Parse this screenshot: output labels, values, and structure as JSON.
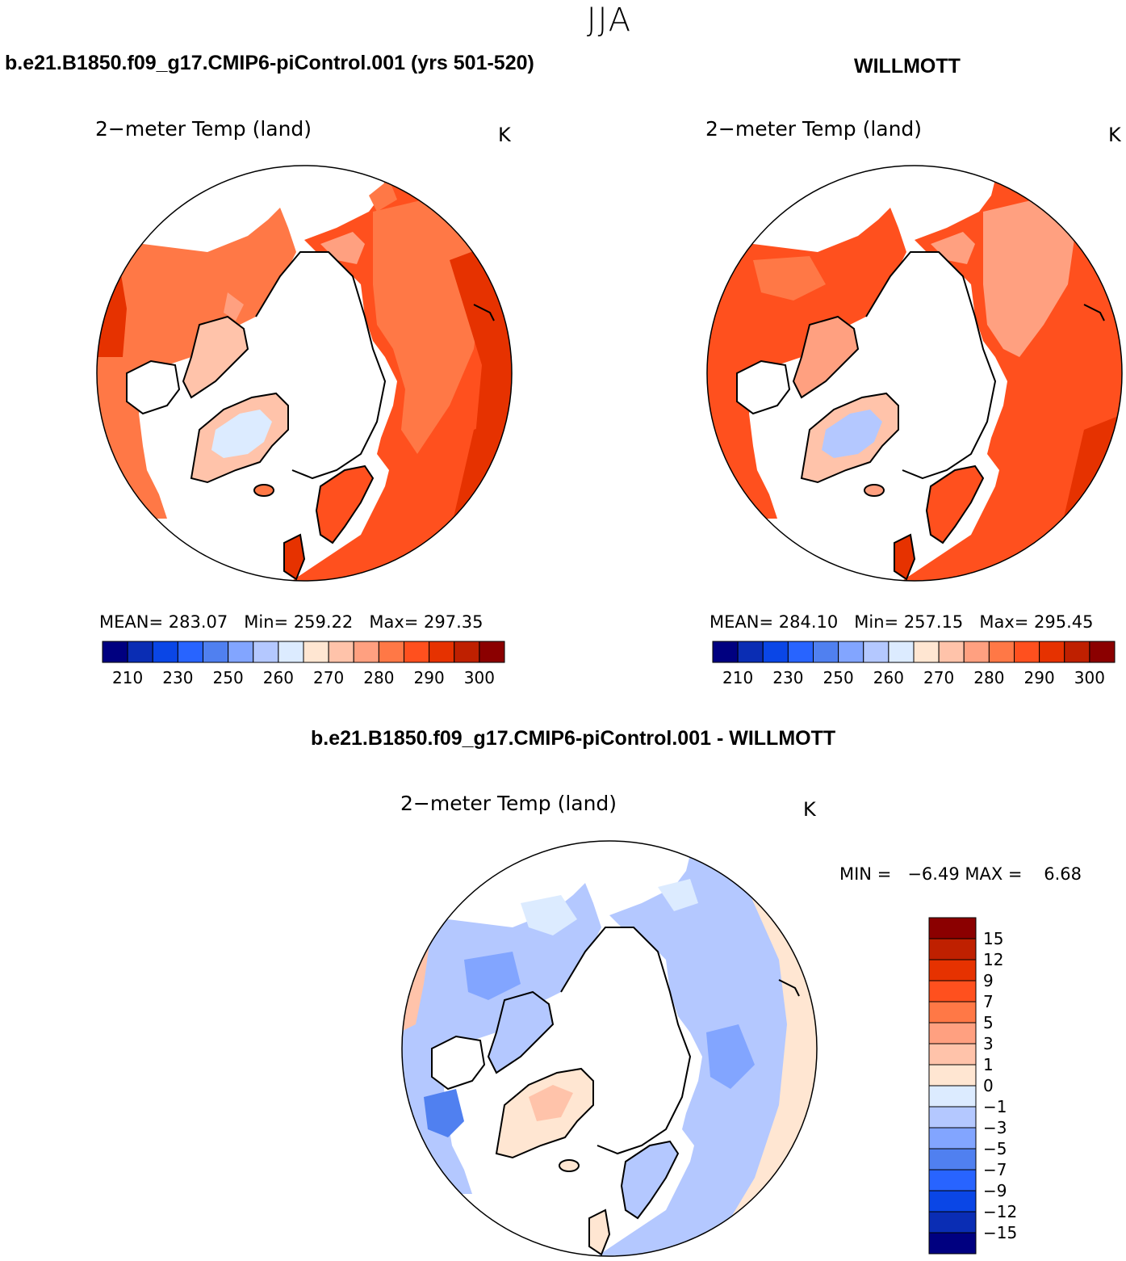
{
  "season": "JJA",
  "panels": [
    {
      "id": "model",
      "header": "b.e21.B1850.f09_g17.CMIP6-piControl.001 (yrs 501-520)",
      "title": "2−meter Temp (land)",
      "unit": "K",
      "stats": {
        "mean_label": "MEAN=",
        "mean": "283.07",
        "min_label": "Min=",
        "min": "259.22",
        "max_label": "Max=",
        "max": "297.35"
      }
    },
    {
      "id": "obs",
      "header": "WILLMOTT",
      "title": "2−meter Temp (land)",
      "unit": "K",
      "stats": {
        "mean_label": "MEAN=",
        "mean": "284.10",
        "min_label": "Min=",
        "min": "257.15",
        "max_label": "Max=",
        "max": "295.45"
      }
    }
  ],
  "abs_colorbar": {
    "colors": [
      "#000080",
      "#0a2db4",
      "#0a46e6",
      "#2864ff",
      "#5080f0",
      "#82a5ff",
      "#b4c8ff",
      "#dcebff",
      "#ffe6d2",
      "#ffc3aa",
      "#ffa080",
      "#ff7846",
      "#ff501e",
      "#e63200",
      "#bf2000",
      "#8b0000"
    ],
    "tick_labels": [
      "210",
      "230",
      "250",
      "260",
      "270",
      "280",
      "290",
      "300"
    ]
  },
  "diff_panel": {
    "header": "b.e21.B1850.f09_g17.CMIP6-piControl.001 - WILLMOTT",
    "title": "2−meter Temp (land)",
    "unit": "K",
    "min_label": "MIN =",
    "min": "−6.49",
    "max_label": "MAX =",
    "max": "6.68",
    "colorbar": {
      "colors": [
        "#8b0000",
        "#bf2000",
        "#e63200",
        "#ff501e",
        "#ff7846",
        "#ffa080",
        "#ffc3aa",
        "#ffe6d2",
        "#dcebff",
        "#b4c8ff",
        "#82a5ff",
        "#5080f0",
        "#2864ff",
        "#0a46e6",
        "#0a2db4",
        "#000080"
      ],
      "tick_labels": [
        "15",
        "12",
        "9",
        "7",
        "5",
        "3",
        "1",
        "0",
        "−1",
        "−3",
        "−5",
        "−7",
        "−9",
        "−12",
        "−15"
      ]
    }
  }
}
